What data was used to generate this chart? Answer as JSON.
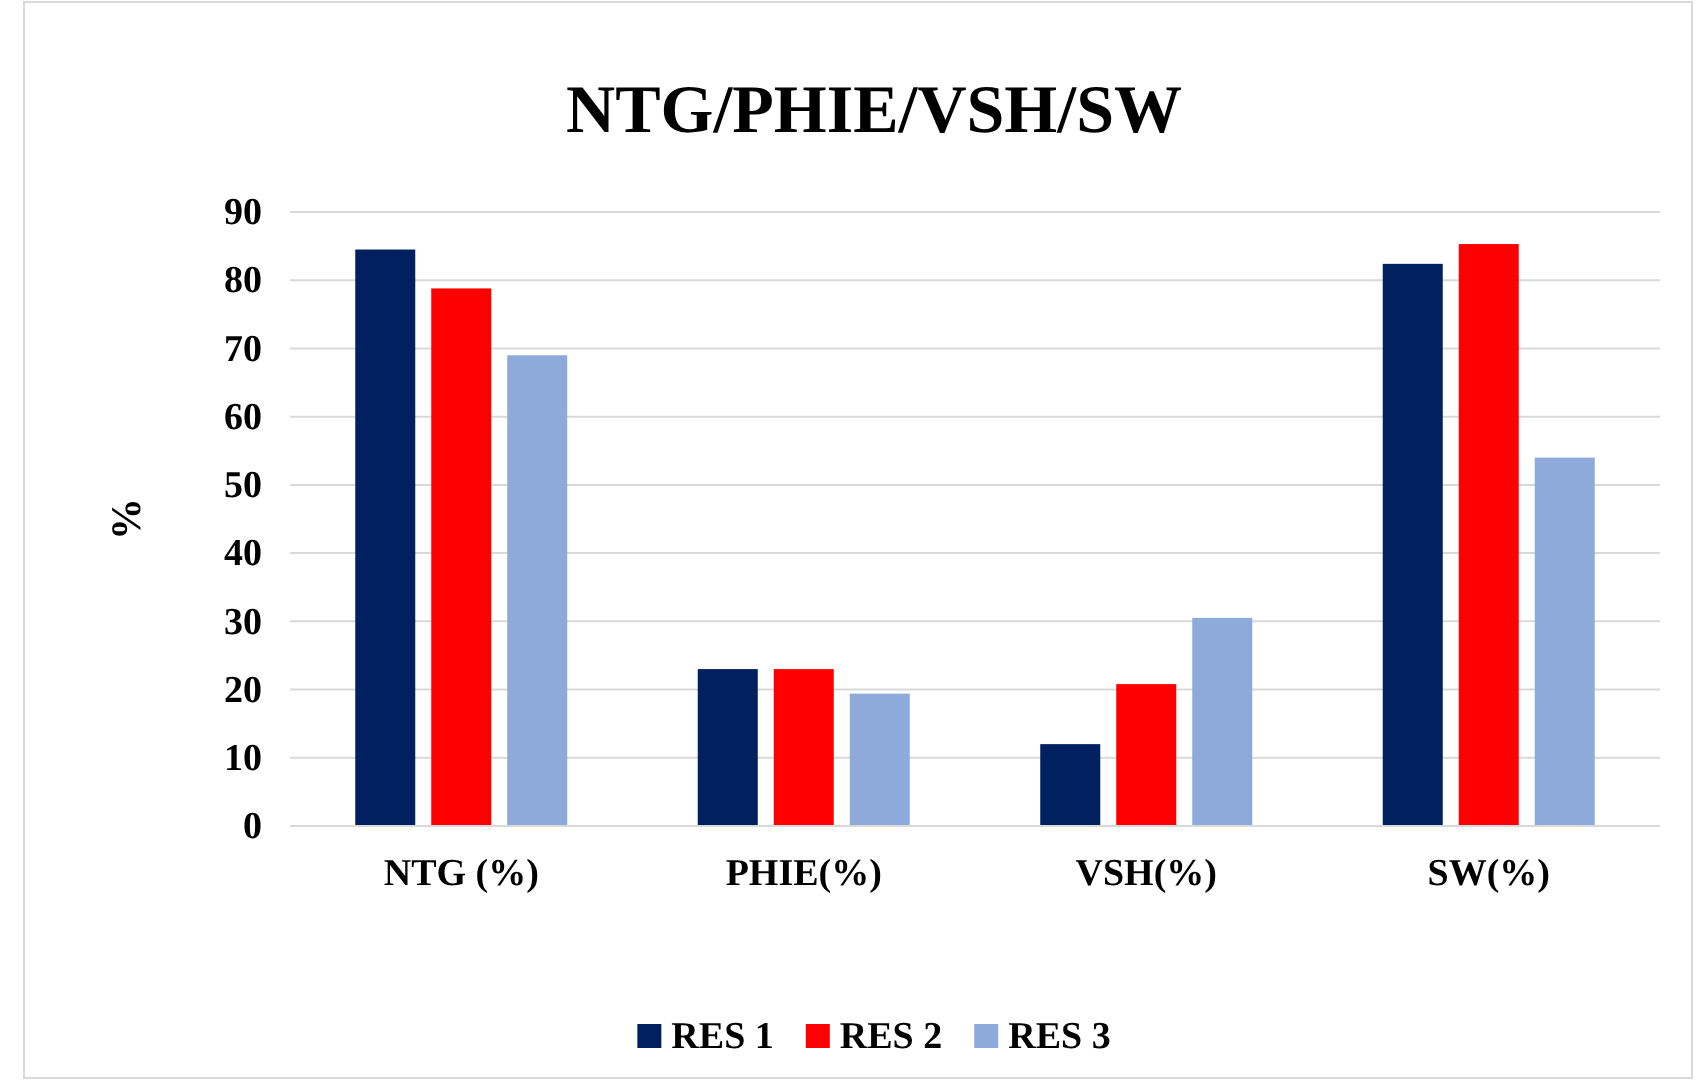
{
  "chart_data": {
    "type": "bar",
    "title": "NTG/PHIE/VSH/SW",
    "ylabel": "%",
    "categories": [
      "NTG (%)",
      "PHIE(%)",
      "VSH(%)",
      "SW(%)"
    ],
    "series": [
      {
        "name": "RES 1",
        "color": "#002060",
        "values": [
          84.5,
          23,
          12,
          82.4
        ]
      },
      {
        "name": "RES 2",
        "color": "#ff0000",
        "values": [
          78.8,
          23,
          20.8,
          85.3
        ]
      },
      {
        "name": "RES 3",
        "color": "#8eaadb",
        "values": [
          69,
          19.4,
          30.5,
          54
        ]
      }
    ],
    "ylim": [
      0,
      90
    ],
    "yticks": [
      0,
      10,
      20,
      30,
      40,
      50,
      60,
      70,
      80,
      90
    ],
    "grid": "y",
    "legend": "bottom"
  }
}
